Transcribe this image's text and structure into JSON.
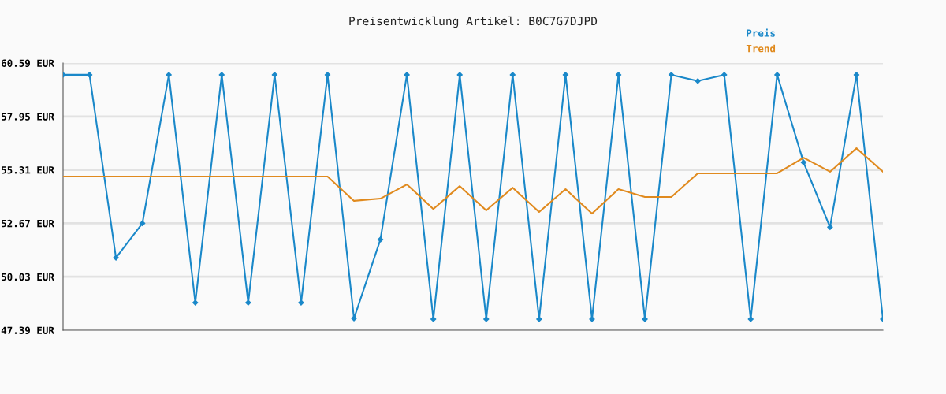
{
  "chart_data": {
    "type": "line",
    "title": "Preisentwicklung Artikel: B0C7G7DJPD",
    "categories": [
      null,
      null,
      null,
      null,
      null,
      null,
      null,
      null,
      null,
      null,
      null,
      null,
      null,
      null,
      null,
      null,
      null,
      null,
      null,
      null,
      null,
      null,
      null,
      null,
      null,
      null,
      null,
      null,
      null,
      null,
      null,
      null
    ],
    "series": [
      {
        "name": "Preis",
        "color": "#1a88c9",
        "marker": "diamond",
        "values": [
          60.01,
          60.01,
          50.97,
          52.67,
          60.01,
          48.75,
          60.01,
          48.75,
          60.01,
          48.75,
          60.01,
          47.97,
          51.87,
          60.01,
          47.94,
          60.01,
          47.94,
          60.01,
          47.94,
          60.01,
          47.94,
          60.01,
          47.94,
          60.01,
          59.7,
          60.01,
          47.94,
          60.01,
          55.68,
          52.48,
          60.01,
          47.94
        ]
      },
      {
        "name": "Trend",
        "color": "#e08a1e",
        "marker": "none",
        "values": [
          54.98,
          54.98,
          54.98,
          54.98,
          54.98,
          54.98,
          54.98,
          54.98,
          54.98,
          54.98,
          54.98,
          53.78,
          53.89,
          54.59,
          53.38,
          54.51,
          53.31,
          54.43,
          53.23,
          54.36,
          53.15,
          54.36,
          53.97,
          53.97,
          55.14,
          55.14,
          55.14,
          55.14,
          55.91,
          55.22,
          56.38,
          55.22
        ]
      }
    ],
    "ylim": [
      47.39,
      60.59
    ],
    "yticks": [
      {
        "value": 47.39,
        "label": "47.39 EUR"
      },
      {
        "value": 50.03,
        "label": "50.03 EUR"
      },
      {
        "value": 52.67,
        "label": "52.67 EUR"
      },
      {
        "value": 55.31,
        "label": "55.31 EUR"
      },
      {
        "value": 57.95,
        "label": "57.95 EUR"
      },
      {
        "value": 60.59,
        "label": "60.59 EUR"
      }
    ],
    "grid": "y",
    "legend": "top right",
    "line_style": "solid"
  }
}
